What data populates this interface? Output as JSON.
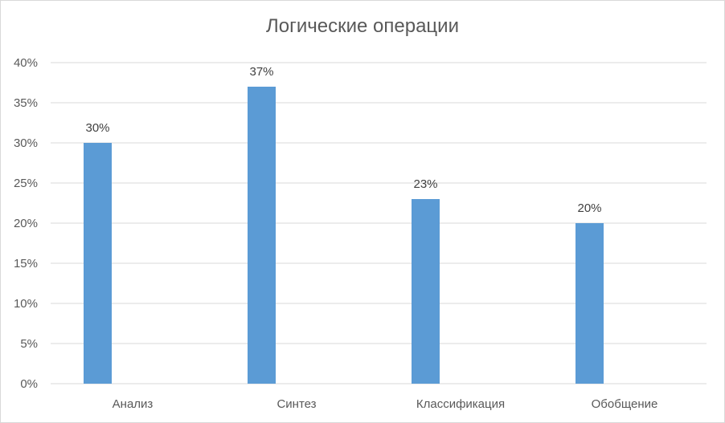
{
  "chart_data": {
    "type": "bar",
    "title": "Логические операции",
    "categories": [
      "Анализ",
      "Синтез",
      "Классификация",
      "Обобщение"
    ],
    "values": [
      30,
      37,
      23,
      20
    ],
    "value_labels": [
      "30%",
      "37%",
      "23%",
      "20%"
    ],
    "ylim": [
      0,
      40
    ],
    "yticks": [
      0,
      5,
      10,
      15,
      20,
      25,
      30,
      35,
      40
    ],
    "ytick_labels": [
      "0%",
      "5%",
      "10%",
      "15%",
      "20%",
      "25%",
      "30%",
      "35%",
      "40%"
    ],
    "xlabel": "",
    "ylabel": "",
    "grid": true,
    "legend": "none",
    "bar_color": "#5b9bd5",
    "grid_color": "#d9d9d9"
  }
}
